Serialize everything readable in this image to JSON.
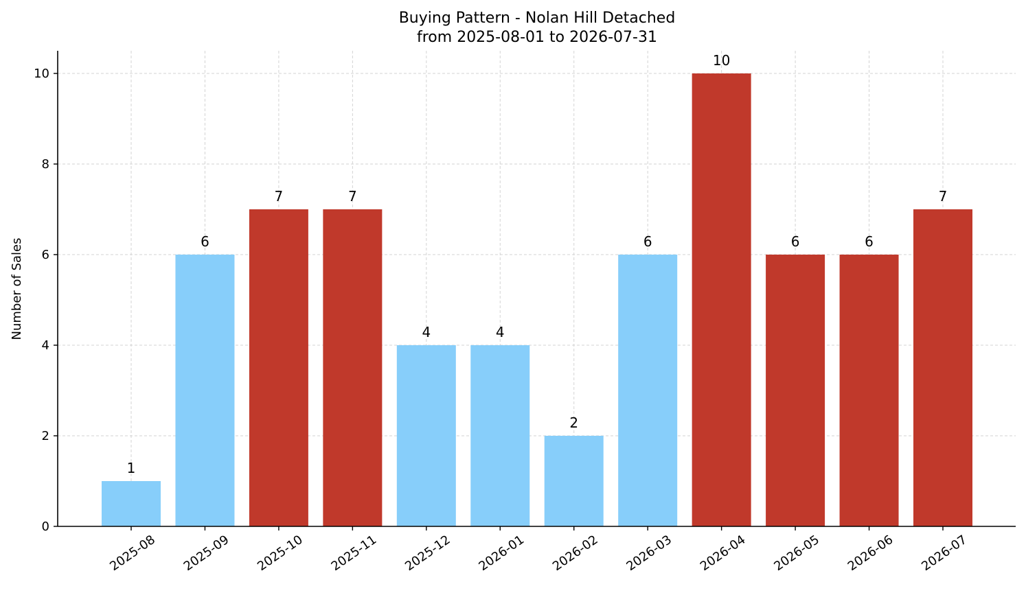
{
  "chart_data": {
    "type": "bar",
    "title": "Buying Pattern - Nolan Hill Detached",
    "subtitle": "from 2025-08-01 to 2026-07-31",
    "xlabel": "",
    "ylabel": "Number of Sales",
    "categories": [
      "2025-08",
      "2025-09",
      "2025-10",
      "2025-11",
      "2025-12",
      "2026-01",
      "2026-02",
      "2026-03",
      "2026-04",
      "2026-05",
      "2026-06",
      "2026-07"
    ],
    "values": [
      1,
      6,
      7,
      7,
      4,
      4,
      2,
      6,
      10,
      6,
      6,
      7
    ],
    "bar_colors": [
      "#87cefa",
      "#87cefa",
      "#c0392b",
      "#c0392b",
      "#87cefa",
      "#87cefa",
      "#87cefa",
      "#87cefa",
      "#c0392b",
      "#c0392b",
      "#c0392b",
      "#c0392b"
    ],
    "ylim": [
      0,
      10.5
    ],
    "yticks": [
      0,
      2,
      4,
      6,
      8,
      10
    ],
    "grid": true,
    "legend": "none"
  }
}
